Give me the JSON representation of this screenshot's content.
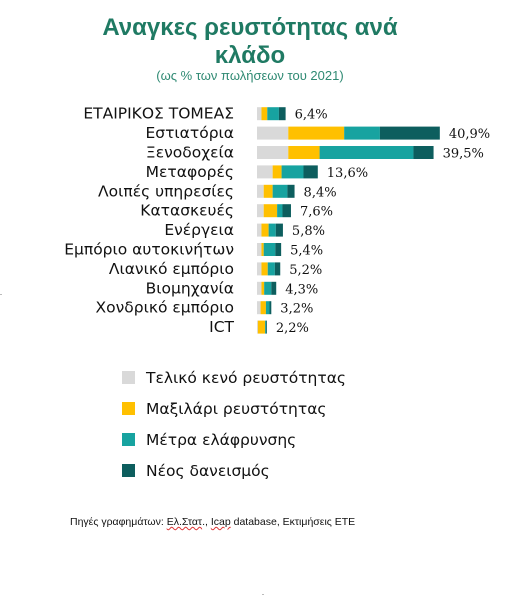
{
  "title_line1": "Αναγκες ρευστότητας ανά",
  "title_line2": "κλάδο",
  "subtitle": "(ως % των πωλήσεων του 2021)",
  "source": {
    "prefix": "Πηγές γραφημάτων: ",
    "part1": "Ελ.Στατ",
    "sep1": "., ",
    "part2": "Icap",
    "part3": " database,  Εκτιμήσεις ΕΤΕ"
  },
  "colors": {
    "gap": "#d9d9d9",
    "cushion": "#ffc000",
    "relief": "#17a3a0",
    "newloans": "#0d5e5e"
  },
  "chart_data": {
    "type": "bar",
    "orientation": "horizontal",
    "stacked": true,
    "title": "Αναγκες ρευστότητας ανά κλάδο",
    "subtitle": "(ως % των πωλήσεων του 2021)",
    "legend_position": "bottom",
    "grid": false,
    "categories": [
      "ΕΤΑΙΡΙΚΟΣ ΤΟΜΕΑΣ",
      "Εστιατόρια",
      "Ξενοδοχεία",
      "Μεταφορές",
      "Λοιπές υπηρεσίες",
      "Κατασκευές",
      "Ενέργεια",
      "Εμπόριο αυτοκινήτων",
      "Λιανικό εμπόριο",
      "Βιομηχανία",
      "Χονδρικό εμπόριο",
      "ICT"
    ],
    "totals_labels": [
      "6,4%",
      "40,9%",
      "39,5%",
      "13,6%",
      "8,4%",
      "7,6%",
      "5,8%",
      "5,4%",
      "5,2%",
      "4,3%",
      "3,2%",
      "2,2%"
    ],
    "totals": [
      6.4,
      40.9,
      39.5,
      13.6,
      8.4,
      7.6,
      5.8,
      5.4,
      5.2,
      4.3,
      3.2,
      2.2
    ],
    "series": [
      {
        "name": "Τελικό κενό ρευστότητας",
        "color_key": "gap",
        "values": [
          1.0,
          7.0,
          7.0,
          3.5,
          1.5,
          1.5,
          1.0,
          1.0,
          1.0,
          1.0,
          0.8,
          0.2
        ]
      },
      {
        "name": "Μαξιλάρι ρευστότητας",
        "color_key": "cushion",
        "values": [
          1.3,
          12.5,
          7.0,
          2.0,
          2.0,
          3.0,
          1.6,
          0.5,
          1.4,
          0.6,
          1.2,
          1.6
        ]
      },
      {
        "name": "Μέτρα ελάφρυνσης",
        "color_key": "relief",
        "values": [
          2.6,
          8.0,
          21.0,
          4.9,
          3.3,
          1.2,
          1.6,
          2.6,
          1.6,
          1.6,
          0.8,
          0.2
        ]
      },
      {
        "name": "Νέος δανεισμός",
        "color_key": "newloans",
        "values": [
          1.5,
          13.4,
          4.5,
          3.2,
          1.6,
          1.9,
          1.6,
          1.3,
          1.2,
          1.1,
          0.4,
          0.2
        ]
      }
    ]
  }
}
